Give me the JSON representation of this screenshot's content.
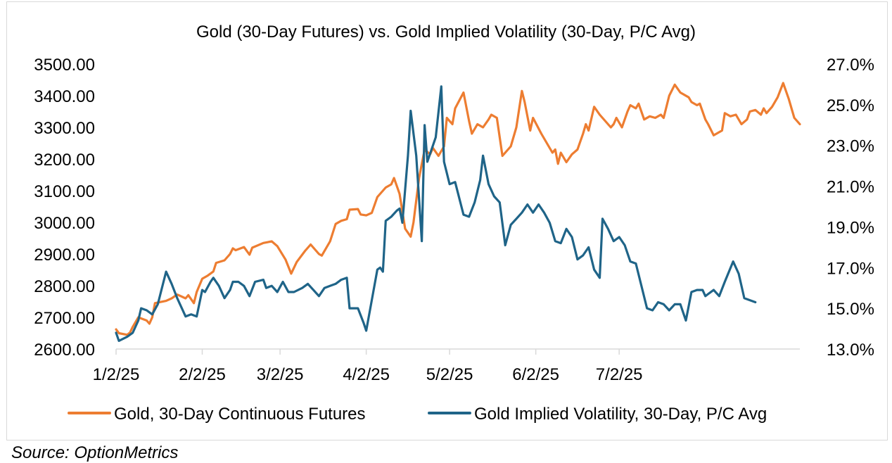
{
  "chart_data": {
    "type": "line",
    "title": "Gold (30-Day Futures) vs. Gold Implied Volatility (30-Day, P/C Avg)",
    "x_ticks": [
      "1/2/25",
      "2/2/25",
      "3/2/25",
      "4/2/25",
      "5/2/25",
      "6/2/25",
      "7/2/25"
    ],
    "y_left": {
      "lim": [
        2600,
        3500
      ],
      "ticks": [
        "2600.00",
        "2700.00",
        "2800.00",
        "2900.00",
        "3000.00",
        "3100.00",
        "3200.00",
        "3300.00",
        "3400.00",
        "3500.00"
      ]
    },
    "y_right": {
      "lim": [
        13.0,
        27.0
      ],
      "ticks": [
        "13.0%",
        "15.0%",
        "17.0%",
        "19.0%",
        "21.0%",
        "23.0%",
        "25.0%",
        "27.0%"
      ]
    },
    "legend_position": "bottom",
    "series": [
      {
        "name": "Gold, 30-Day Continuous Futures",
        "axis": "left",
        "color": "#ED7D31",
        "points": [
          [
            "1/2/25",
            2662
          ],
          [
            "1/3/25",
            2650
          ],
          [
            "1/6/25",
            2645
          ],
          [
            "1/7/25",
            2652
          ],
          [
            "1/8/25",
            2670
          ],
          [
            "1/10/25",
            2700
          ],
          [
            "1/13/25",
            2690
          ],
          [
            "1/14/25",
            2680
          ],
          [
            "1/15/25",
            2700
          ],
          [
            "1/16/25",
            2745
          ],
          [
            "1/20/25",
            2752
          ],
          [
            "1/22/25",
            2760
          ],
          [
            "1/24/25",
            2772
          ],
          [
            "1/27/25",
            2760
          ],
          [
            "1/28/25",
            2770
          ],
          [
            "1/30/25",
            2745
          ],
          [
            "1/31/25",
            2780
          ],
          [
            "2/2/25",
            2822
          ],
          [
            "2/4/25",
            2832
          ],
          [
            "2/6/25",
            2845
          ],
          [
            "2/7/25",
            2872
          ],
          [
            "2/10/25",
            2880
          ],
          [
            "2/12/25",
            2900
          ],
          [
            "2/13/25",
            2918
          ],
          [
            "2/14/25",
            2912
          ],
          [
            "2/17/25",
            2922
          ],
          [
            "2/19/25",
            2898
          ],
          [
            "2/20/25",
            2920
          ],
          [
            "2/24/25",
            2935
          ],
          [
            "2/27/25",
            2940
          ],
          [
            "3/1/25",
            2925
          ],
          [
            "3/4/25",
            2882
          ],
          [
            "3/6/25",
            2838
          ],
          [
            "3/8/25",
            2875
          ],
          [
            "3/11/25",
            2910
          ],
          [
            "3/13/25",
            2930
          ],
          [
            "3/16/25",
            2900
          ],
          [
            "3/17/25",
            2895
          ],
          [
            "3/20/25",
            2940
          ],
          [
            "3/22/25",
            2995
          ],
          [
            "3/24/25",
            3005
          ],
          [
            "3/26/25",
            3010
          ],
          [
            "3/27/25",
            3040
          ],
          [
            "3/30/25",
            3042
          ],
          [
            "3/31/25",
            3025
          ],
          [
            "4/2/25",
            3022
          ],
          [
            "4/4/25",
            3030
          ],
          [
            "4/6/25",
            3080
          ],
          [
            "4/9/25",
            3110
          ],
          [
            "4/11/25",
            3120
          ],
          [
            "4/12/25",
            3140
          ],
          [
            "4/14/25",
            3090
          ],
          [
            "4/16/25",
            2980
          ],
          [
            "4/18/25",
            2955
          ],
          [
            "4/19/25",
            3000
          ],
          [
            "4/21/25",
            3140
          ],
          [
            "4/23/25",
            3230
          ],
          [
            "4/25/25",
            3215
          ],
          [
            "4/26/25",
            3235
          ],
          [
            "4/28/25",
            3210
          ],
          [
            "4/30/25",
            3240
          ],
          [
            "5/1/25",
            3330
          ],
          [
            "5/3/25",
            3310
          ],
          [
            "5/4/25",
            3360
          ],
          [
            "5/7/25",
            3410
          ],
          [
            "5/9/25",
            3320
          ],
          [
            "5/10/25",
            3280
          ],
          [
            "5/12/25",
            3310
          ],
          [
            "5/14/25",
            3300
          ],
          [
            "5/16/25",
            3325
          ],
          [
            "5/17/25",
            3340
          ],
          [
            "5/19/25",
            3330
          ],
          [
            "5/21/25",
            3210
          ],
          [
            "5/24/25",
            3240
          ],
          [
            "5/26/25",
            3300
          ],
          [
            "5/28/25",
            3415
          ],
          [
            "5/29/25",
            3380
          ],
          [
            "5/31/25",
            3290
          ],
          [
            "6/1/25",
            3330
          ],
          [
            "6/4/25",
            3280
          ],
          [
            "6/6/25",
            3250
          ],
          [
            "6/8/25",
            3220
          ],
          [
            "6/9/25",
            3230
          ],
          [
            "6/10/25",
            3185
          ],
          [
            "6/11/25",
            3220
          ],
          [
            "6/13/25",
            3190
          ],
          [
            "6/15/25",
            3215
          ],
          [
            "6/17/25",
            3230
          ],
          [
            "6/19/25",
            3280
          ],
          [
            "6/20/25",
            3310
          ],
          [
            "6/21/25",
            3290
          ],
          [
            "6/23/25",
            3365
          ],
          [
            "6/25/25",
            3340
          ],
          [
            "6/27/25",
            3320
          ],
          [
            "6/29/25",
            3300
          ],
          [
            "6/30/25",
            3310
          ],
          [
            "7/1/25",
            3330
          ],
          [
            "7/3/25",
            3300
          ],
          [
            "7/5/25",
            3350
          ],
          [
            "7/6/25",
            3370
          ],
          [
            "7/8/25",
            3360
          ],
          [
            "7/9/25",
            3375
          ],
          [
            "7/11/25",
            3325
          ],
          [
            "7/13/25",
            3335
          ],
          [
            "7/15/25",
            3330
          ],
          [
            "7/17/25",
            3340
          ],
          [
            "7/18/25",
            3330
          ],
          [
            "7/20/25",
            3400
          ],
          [
            "7/22/25",
            3435
          ],
          [
            "7/24/25",
            3410
          ],
          [
            "7/27/25",
            3395
          ],
          [
            "7/28/25",
            3380
          ],
          [
            "7/30/25",
            3370
          ],
          [
            "7/31/25",
            3375
          ],
          [
            "8/2/25",
            3325
          ],
          [
            "8/3/25",
            3310
          ],
          [
            "8/5/25",
            3275
          ],
          [
            "8/6/25",
            3280
          ],
          [
            "8/8/25",
            3290
          ],
          [
            "8/9/25",
            3345
          ],
          [
            "8/10/25",
            3340
          ],
          [
            "8/11/25",
            3335
          ],
          [
            "8/13/25",
            3340
          ],
          [
            "8/15/25",
            3310
          ],
          [
            "8/17/25",
            3325
          ],
          [
            "8/18/25",
            3350
          ],
          [
            "8/20/25",
            3355
          ],
          [
            "8/22/25",
            3340
          ],
          [
            "8/23/25",
            3360
          ],
          [
            "8/24/25",
            3345
          ],
          [
            "8/26/25",
            3365
          ],
          [
            "8/28/25",
            3395
          ],
          [
            "8/30/25",
            3440
          ],
          [
            "9/1/25",
            3390
          ],
          [
            "9/3/25",
            3330
          ],
          [
            "9/5/25",
            3310
          ]
        ]
      },
      {
        "name": "Gold Implied Volatility, 30-Day, P/C Avg",
        "axis": "right",
        "color": "#1F6488",
        "points": [
          [
            "1/2/25",
            13.8
          ],
          [
            "1/3/25",
            13.4
          ],
          [
            "1/6/25",
            13.6
          ],
          [
            "1/8/25",
            13.8
          ],
          [
            "1/10/25",
            14.4
          ],
          [
            "1/11/25",
            15.0
          ],
          [
            "1/13/25",
            14.9
          ],
          [
            "1/15/25",
            14.7
          ],
          [
            "1/17/25",
            15.2
          ],
          [
            "1/20/25",
            16.8
          ],
          [
            "1/22/25",
            16.2
          ],
          [
            "1/24/25",
            15.5
          ],
          [
            "1/27/25",
            14.6
          ],
          [
            "1/29/25",
            14.7
          ],
          [
            "1/31/25",
            14.6
          ],
          [
            "2/2/25",
            15.9
          ],
          [
            "2/3/25",
            15.8
          ],
          [
            "2/5/25",
            16.3
          ],
          [
            "2/6/25",
            16.5
          ],
          [
            "2/8/25",
            16.1
          ],
          [
            "2/10/25",
            15.5
          ],
          [
            "2/12/25",
            15.9
          ],
          [
            "2/13/25",
            16.3
          ],
          [
            "2/15/25",
            16.3
          ],
          [
            "2/17/25",
            16.1
          ],
          [
            "2/19/25",
            15.6
          ],
          [
            "2/21/25",
            16.3
          ],
          [
            "2/24/25",
            16.4
          ],
          [
            "2/25/25",
            16.0
          ],
          [
            "2/27/25",
            16.1
          ],
          [
            "3/1/25",
            15.8
          ],
          [
            "3/3/25",
            16.3
          ],
          [
            "3/5/25",
            15.8
          ],
          [
            "3/7/25",
            15.8
          ],
          [
            "3/10/25",
            16.0
          ],
          [
            "3/12/25",
            16.2
          ],
          [
            "3/14/25",
            15.9
          ],
          [
            "3/16/25",
            15.6
          ],
          [
            "3/18/25",
            16.0
          ],
          [
            "3/20/25",
            16.1
          ],
          [
            "3/22/25",
            16.2
          ],
          [
            "3/24/25",
            16.4
          ],
          [
            "3/26/25",
            16.5
          ],
          [
            "3/27/25",
            15.0
          ],
          [
            "3/30/25",
            15.0
          ],
          [
            "4/1/25",
            14.3
          ],
          [
            "4/2/25",
            13.9
          ],
          [
            "4/4/25",
            15.4
          ],
          [
            "4/6/25",
            16.9
          ],
          [
            "4/7/25",
            17.0
          ],
          [
            "4/8/25",
            16.8
          ],
          [
            "4/9/25",
            19.3
          ],
          [
            "4/11/25",
            19.5
          ],
          [
            "4/13/25",
            19.8
          ],
          [
            "4/14/25",
            19.9
          ],
          [
            "4/15/25",
            19.2
          ],
          [
            "4/17/25",
            22.5
          ],
          [
            "4/18/25",
            24.7
          ],
          [
            "4/20/25",
            22.5
          ],
          [
            "4/22/25",
            18.3
          ],
          [
            "4/23/25",
            24.0
          ],
          [
            "4/24/25",
            22.2
          ],
          [
            "4/27/25",
            23.4
          ],
          [
            "4/29/25",
            25.9
          ],
          [
            "4/30/25",
            22.2
          ],
          [
            "5/2/25",
            21.1
          ],
          [
            "5/4/25",
            21.2
          ],
          [
            "5/7/25",
            19.6
          ],
          [
            "5/9/25",
            19.5
          ],
          [
            "5/11/25",
            20.2
          ],
          [
            "5/13/25",
            21.3
          ],
          [
            "5/14/25",
            22.5
          ],
          [
            "5/16/25",
            21.1
          ],
          [
            "5/18/25",
            20.5
          ],
          [
            "5/20/25",
            20.2
          ],
          [
            "5/22/25",
            18.1
          ],
          [
            "5/24/25",
            19.1
          ],
          [
            "5/26/25",
            19.4
          ],
          [
            "5/28/25",
            19.7
          ],
          [
            "5/30/25",
            20.1
          ],
          [
            "6/1/25",
            19.7
          ],
          [
            "6/3/25",
            20.1
          ],
          [
            "6/5/25",
            19.7
          ],
          [
            "6/7/25",
            19.2
          ],
          [
            "6/9/25",
            18.3
          ],
          [
            "6/11/25",
            18.2
          ],
          [
            "6/13/25",
            18.9
          ],
          [
            "6/15/25",
            18.5
          ],
          [
            "6/17/25",
            17.4
          ],
          [
            "6/19/25",
            17.6
          ],
          [
            "6/21/25",
            18.0
          ],
          [
            "6/23/25",
            16.9
          ],
          [
            "6/25/25",
            16.5
          ],
          [
            "6/26/25",
            19.4
          ],
          [
            "6/28/25",
            18.9
          ],
          [
            "6/30/25",
            18.3
          ],
          [
            "7/2/25",
            18.5
          ],
          [
            "7/4/25",
            18.1
          ],
          [
            "7/6/25",
            17.3
          ],
          [
            "7/8/25",
            17.2
          ],
          [
            "7/10/25",
            16.1
          ],
          [
            "7/12/25",
            15.0
          ],
          [
            "7/14/25",
            14.9
          ],
          [
            "7/16/25",
            15.3
          ],
          [
            "7/18/25",
            15.2
          ],
          [
            "7/20/25",
            14.9
          ],
          [
            "7/22/25",
            15.2
          ],
          [
            "7/24/25",
            15.2
          ],
          [
            "7/26/25",
            14.4
          ],
          [
            "7/28/25",
            15.8
          ],
          [
            "7/30/25",
            15.9
          ],
          [
            "8/1/25",
            15.9
          ],
          [
            "8/2/25",
            15.6
          ],
          [
            "8/3/25",
            15.7
          ],
          [
            "8/5/25",
            15.9
          ],
          [
            "8/7/25",
            15.6
          ],
          [
            "8/9/25",
            16.3
          ],
          [
            "8/12/25",
            17.3
          ],
          [
            "8/14/25",
            16.7
          ],
          [
            "8/16/25",
            15.5
          ],
          [
            "8/18/25",
            15.4
          ],
          [
            "8/20/25",
            15.3
          ]
        ]
      }
    ]
  }
}
